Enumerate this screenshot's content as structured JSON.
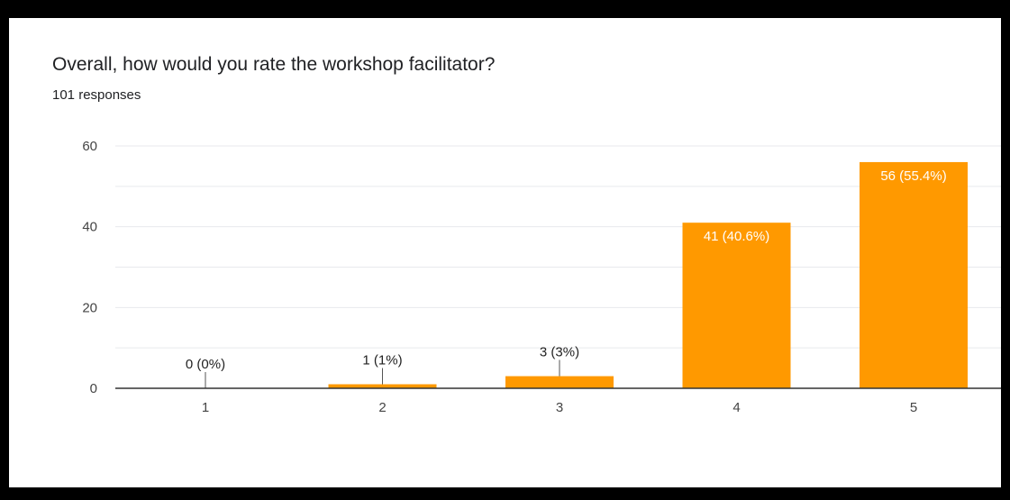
{
  "card": {
    "title": "Overall, how would you rate the workshop facilitator?",
    "subtitle": "101 responses"
  },
  "colors": {
    "bar": "#ff9900",
    "grid": "#e8eaed",
    "axis": "#333333",
    "page_background": "#000000",
    "card_background": "#ffffff"
  },
  "chart_data": {
    "type": "bar",
    "title": "Overall, how would you rate the workshop facilitator?",
    "subtitle": "101 responses",
    "categories": [
      "1",
      "2",
      "3",
      "4",
      "5"
    ],
    "values": [
      0,
      1,
      3,
      41,
      56
    ],
    "data_labels": [
      "0 (0%)",
      "1 (1%)",
      "3 (3%)",
      "41 (40.6%)",
      "56 (55.4%)"
    ],
    "yticks": [
      0,
      20,
      40,
      60
    ],
    "ylim": [
      0,
      60
    ],
    "xlabel": "",
    "ylabel": "",
    "grid": true,
    "legend": "none"
  }
}
